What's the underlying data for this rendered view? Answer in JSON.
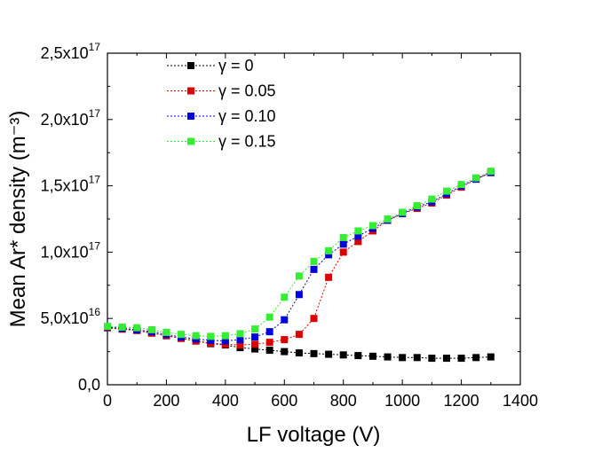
{
  "chart_data": {
    "type": "line",
    "xlabel": "LF voltage (V)",
    "ylabel": "Mean Ar* density (m⁻³)",
    "xlim": [
      0,
      1400
    ],
    "ylim": [
      0,
      2.5e+17
    ],
    "x_ticks": [
      "0",
      "200",
      "400",
      "600",
      "800",
      "1000",
      "1200",
      "1400"
    ],
    "y_ticks": [
      {
        "value": 0,
        "mantissa": "0,0",
        "exponent": ""
      },
      {
        "value": 5e+16,
        "mantissa": "5,0x10",
        "exponent": "16"
      },
      {
        "value": 1e+17,
        "mantissa": "1,0x10",
        "exponent": "17"
      },
      {
        "value": 1.5e+17,
        "mantissa": "1,5x10",
        "exponent": "17"
      },
      {
        "value": 2e+17,
        "mantissa": "2,0x10",
        "exponent": "17"
      },
      {
        "value": 2.5e+17,
        "mantissa": "2,5x10",
        "exponent": "17"
      }
    ],
    "legend_position": "top-left",
    "grid": false,
    "x": [
      0,
      50,
      100,
      150,
      200,
      250,
      300,
      350,
      400,
      450,
      500,
      550,
      600,
      650,
      700,
      750,
      800,
      850,
      900,
      950,
      1000,
      1050,
      1100,
      1150,
      1200,
      1250,
      1300
    ],
    "series": [
      {
        "name": "γ = 0",
        "color": "#000000",
        "values": [
          4.3e+16,
          4.2e+16,
          4.1e+16,
          3.9e+16,
          3.7e+16,
          3.5e+16,
          3.3e+16,
          3.1e+16,
          3e+16,
          2.8e+16,
          2.7e+16,
          2.6e+16,
          2.5e+16,
          2.4e+16,
          2.35e+16,
          2.3e+16,
          2.25e+16,
          2.2e+16,
          2.15e+16,
          2.1e+16,
          2.05e+16,
          2.05e+16,
          2e+16,
          2e+16,
          2e+16,
          2.05e+16,
          2.1e+16
        ]
      },
      {
        "name": "γ = 0.05",
        "color": "#dd0000",
        "values": [
          4.3e+16,
          4.2e+16,
          4.1e+16,
          3.9e+16,
          3.7e+16,
          3.5e+16,
          3.3e+16,
          3.15e+16,
          3.05e+16,
          3e+16,
          3.05e+16,
          3.2e+16,
          3.4e+16,
          3.8e+16,
          5e+16,
          8.1e+16,
          1e+17,
          1.08e+17,
          1.16e+17,
          1.24e+17,
          1.29e+17,
          1.33e+17,
          1.37e+17,
          1.43e+17,
          1.49e+17,
          1.55e+17,
          1.6e+17
        ]
      },
      {
        "name": "γ = 0.10",
        "color": "#0000dd",
        "values": [
          4.35e+16,
          4.25e+16,
          4.15e+16,
          4e+16,
          3.8e+16,
          3.6e+16,
          3.45e+16,
          3.35e+16,
          3.3e+16,
          3.4e+16,
          3.6e+16,
          4e+16,
          4.9e+16,
          6.8e+16,
          8.7e+16,
          9.8e+16,
          1.06e+17,
          1.12e+17,
          1.18e+17,
          1.24e+17,
          1.29e+17,
          1.34e+17,
          1.38e+17,
          1.44e+17,
          1.5e+17,
          1.55e+17,
          1.6e+17
        ]
      },
      {
        "name": "γ = 0.15",
        "color": "#33ee33",
        "values": [
          4.4e+16,
          4.35e+16,
          4.3e+16,
          4.15e+16,
          3.95e+16,
          3.8e+16,
          3.7e+16,
          3.65e+16,
          3.7e+16,
          3.85e+16,
          4.2e+16,
          5.1e+16,
          6.6e+16,
          8.2e+16,
          9.3e+16,
          1.01e+17,
          1.11e+17,
          1.16e+17,
          1.2e+17,
          1.25e+17,
          1.3e+17,
          1.35e+17,
          1.4e+17,
          1.46e+17,
          1.51e+17,
          1.56e+17,
          1.61e+17
        ]
      }
    ]
  }
}
